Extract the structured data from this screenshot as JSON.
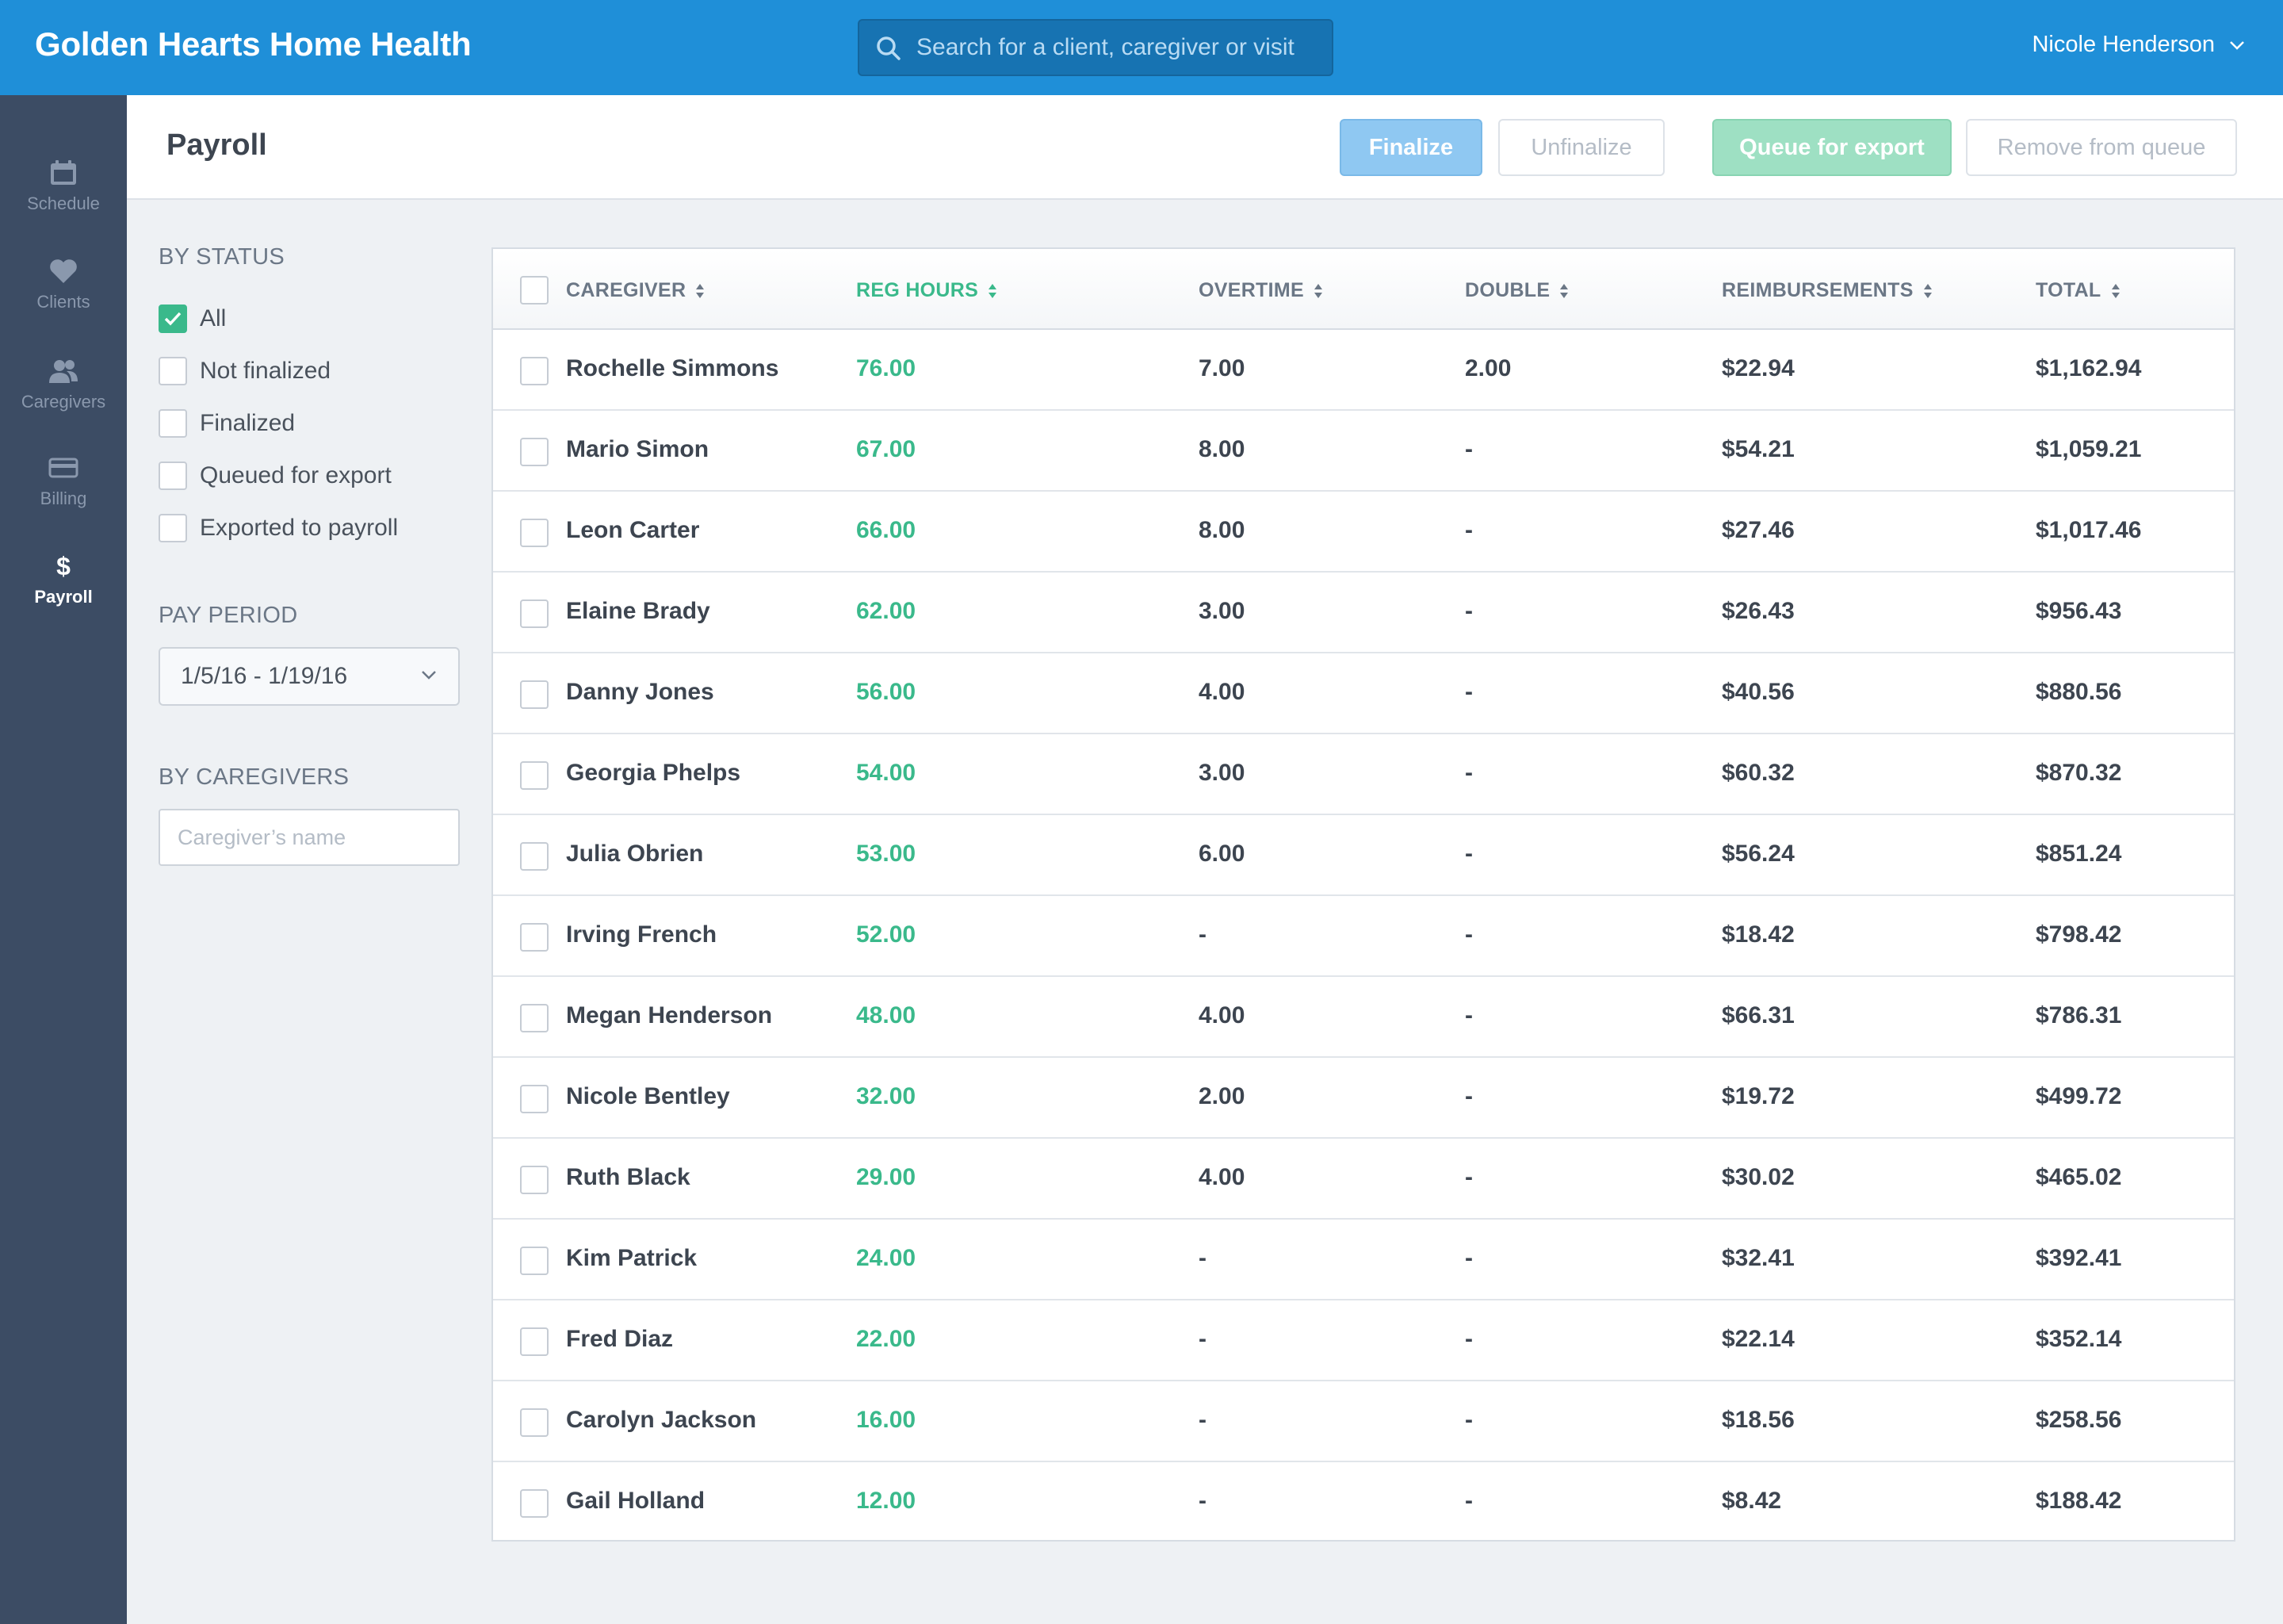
{
  "app": {
    "brand": "Golden Hearts Home Health",
    "search_placeholder": "Search for a client, caregiver or visit",
    "user_name": "Nicole Henderson"
  },
  "nav": [
    {
      "label": "Schedule",
      "icon": "calendar-icon"
    },
    {
      "label": "Clients",
      "icon": "heart-icon"
    },
    {
      "label": "Caregivers",
      "icon": "users-icon"
    },
    {
      "label": "Billing",
      "icon": "credit-card-icon"
    },
    {
      "label": "Payroll",
      "icon": "dollar-icon",
      "active": true
    }
  ],
  "header": {
    "title": "Payroll",
    "finalize": "Finalize",
    "unfinalize": "Unfinalize",
    "queue": "Queue for export",
    "remove": "Remove from queue"
  },
  "filters": {
    "by_status": "BY STATUS",
    "status_options": [
      {
        "label": "All",
        "checked": true
      },
      {
        "label": "Not finalized",
        "checked": false
      },
      {
        "label": "Finalized",
        "checked": false
      },
      {
        "label": "Queued for export",
        "checked": false
      },
      {
        "label": "Exported to payroll",
        "checked": false
      }
    ],
    "pay_period_heading": "PAY PERIOD",
    "pay_period": "1/5/16 - 1/19/16",
    "by_caregivers": "BY CAREGIVERS",
    "caregiver_placeholder": "Caregiver’s name"
  },
  "table": {
    "columns": [
      "CAREGIVER",
      "REG HOURS",
      "OVERTIME",
      "DOUBLE",
      "REIMBURSEMENTS",
      "TOTAL"
    ],
    "rows": [
      [
        "Rochelle Simmons",
        "76.00",
        "7.00",
        "2.00",
        "$22.94",
        "$1,162.94"
      ],
      [
        "Mario Simon",
        "67.00",
        "8.00",
        "-",
        "$54.21",
        "$1,059.21"
      ],
      [
        "Leon Carter",
        "66.00",
        "8.00",
        "-",
        "$27.46",
        "$1,017.46"
      ],
      [
        "Elaine Brady",
        "62.00",
        "3.00",
        "-",
        "$26.43",
        "$956.43"
      ],
      [
        "Danny Jones",
        "56.00",
        "4.00",
        "-",
        "$40.56",
        "$880.56"
      ],
      [
        "Georgia Phelps",
        "54.00",
        "3.00",
        "-",
        "$60.32",
        "$870.32"
      ],
      [
        "Julia Obrien",
        "53.00",
        "6.00",
        "-",
        "$56.24",
        "$851.24"
      ],
      [
        "Irving French",
        "52.00",
        "-",
        "-",
        "$18.42",
        "$798.42"
      ],
      [
        "Megan Henderson",
        "48.00",
        "4.00",
        "-",
        "$66.31",
        "$786.31"
      ],
      [
        "Nicole Bentley",
        "32.00",
        "2.00",
        "-",
        "$19.72",
        "$499.72"
      ],
      [
        "Ruth Black",
        "29.00",
        "4.00",
        "-",
        "$30.02",
        "$465.02"
      ],
      [
        "Kim Patrick",
        "24.00",
        "-",
        "-",
        "$32.41",
        "$392.41"
      ],
      [
        "Fred Diaz",
        "22.00",
        "-",
        "-",
        "$22.14",
        "$352.14"
      ],
      [
        "Carolyn Jackson",
        "16.00",
        "-",
        "-",
        "$18.56",
        "$258.56"
      ],
      [
        "Gail Holland",
        "12.00",
        "-",
        "-",
        "$8.42",
        "$188.42"
      ]
    ]
  },
  "colors": {
    "topbar": "#1f8fd8",
    "sidebar": "#3c4c64",
    "accent_green": "#3ab98b",
    "finalize_blue": "#8fc8f2"
  }
}
